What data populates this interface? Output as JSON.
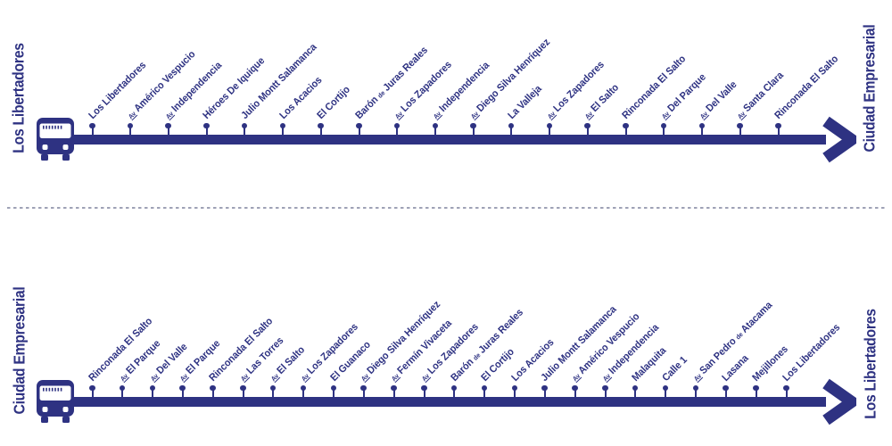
{
  "theme": {
    "line_color": "#2e3282",
    "divider_color": "#9fa2b6",
    "background": "#ffffff"
  },
  "icons": {
    "terminal_vehicle": "bus-front-icon",
    "direction_arrow": "arrow-right-icon"
  },
  "routes": [
    {
      "origin": "Los Libertadores",
      "destination": "Ciudad Empresarial",
      "stops": [
        {
          "name": "Los Libertadores"
        },
        {
          "abbr": "Av",
          "name": "Américo Vespucio"
        },
        {
          "abbr": "Av",
          "name": "Independencia"
        },
        {
          "name": "Héroes De Iquique"
        },
        {
          "name": "Julio Montt Salamanca"
        },
        {
          "name": "Los Acacios"
        },
        {
          "name": "El Cortijo"
        },
        {
          "name": "Barón {de} Juras Reales"
        },
        {
          "abbr": "Av",
          "name": "Los Zapadores"
        },
        {
          "abbr": "Av",
          "name": "Independencia"
        },
        {
          "abbr": "Av",
          "name": "Diego Silva Henríquez"
        },
        {
          "name": "La Valleja"
        },
        {
          "abbr": "Av",
          "name": "Los Zapadores"
        },
        {
          "abbr": "Av",
          "name": "El Salto"
        },
        {
          "name": "Rinconada El Salto"
        },
        {
          "abbr": "Av",
          "name": "Del Parque"
        },
        {
          "abbr": "Av",
          "name": "Del Valle"
        },
        {
          "abbr": "Av",
          "name": "Santa Clara"
        },
        {
          "name": "Rinconada El Salto"
        }
      ]
    },
    {
      "origin": "Ciudad Empresarial",
      "destination": "Los Libertadores",
      "stops": [
        {
          "name": "Rinconada El Salto"
        },
        {
          "abbr": "Av",
          "name": "El Parque"
        },
        {
          "abbr": "Av",
          "name": "Del Valle"
        },
        {
          "abbr": "Av",
          "name": "El Parque"
        },
        {
          "name": "Rinconada El Salto"
        },
        {
          "abbr": "Av",
          "name": "Las Torres"
        },
        {
          "abbr": "Av",
          "name": "El Salto"
        },
        {
          "abbr": "Av",
          "name": "Los Zapadores"
        },
        {
          "name": "El Guanaco"
        },
        {
          "abbr": "Av",
          "name": "Diego Silva Henríquez"
        },
        {
          "abbr": "Av",
          "name": "Fermín Vivaceta"
        },
        {
          "abbr": "Av",
          "name": "Los Zapadores"
        },
        {
          "name": "Barón {de} Juras Reales"
        },
        {
          "name": "El Cortijo"
        },
        {
          "name": "Los Acacios"
        },
        {
          "name": "Julio Montt Salamanca"
        },
        {
          "abbr": "Av",
          "name": "Américo Vespucio"
        },
        {
          "abbr": "Av",
          "name": "Independencia"
        },
        {
          "name": "Malaquita"
        },
        {
          "name": "Calle 1"
        },
        {
          "abbr": "Av",
          "name": "San Pedro {de} Atacama"
        },
        {
          "name": "Lasana"
        },
        {
          "name": "Mejillones"
        },
        {
          "name": "Los Libertadores"
        }
      ]
    }
  ]
}
